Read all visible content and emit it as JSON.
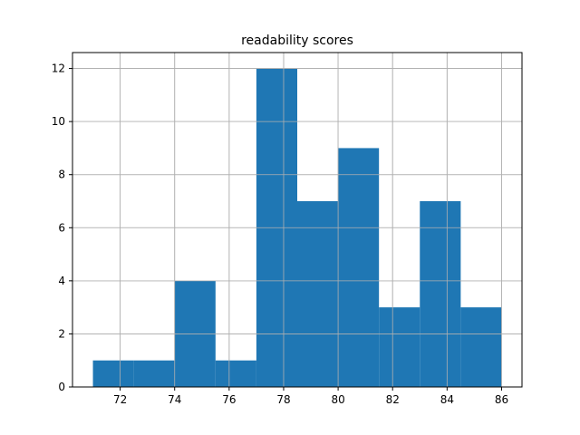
{
  "chart_data": {
    "type": "bar",
    "title": "readability scores",
    "xlabel": "",
    "ylabel": "",
    "bins": [
      {
        "x0": 71.0,
        "x1": 72.5,
        "count": 1
      },
      {
        "x0": 72.5,
        "x1": 74.0,
        "count": 1
      },
      {
        "x0": 74.0,
        "x1": 75.5,
        "count": 4
      },
      {
        "x0": 75.5,
        "x1": 77.0,
        "count": 1
      },
      {
        "x0": 77.0,
        "x1": 78.5,
        "count": 12
      },
      {
        "x0": 78.5,
        "x1": 80.0,
        "count": 7
      },
      {
        "x0": 80.0,
        "x1": 81.5,
        "count": 9
      },
      {
        "x0": 81.5,
        "x1": 83.0,
        "count": 3
      },
      {
        "x0": 83.0,
        "x1": 84.5,
        "count": 7
      },
      {
        "x0": 84.5,
        "x1": 86.0,
        "count": 3
      }
    ],
    "xlim": [
      70.25,
      86.75
    ],
    "ylim": [
      0,
      12.6
    ],
    "xticks": [
      72,
      74,
      76,
      78,
      80,
      82,
      84,
      86
    ],
    "yticks": [
      0,
      2,
      4,
      6,
      8,
      10,
      12
    ],
    "grid": true,
    "bar_color": "#1f77b4",
    "grid_color": "#b0b0b0"
  }
}
